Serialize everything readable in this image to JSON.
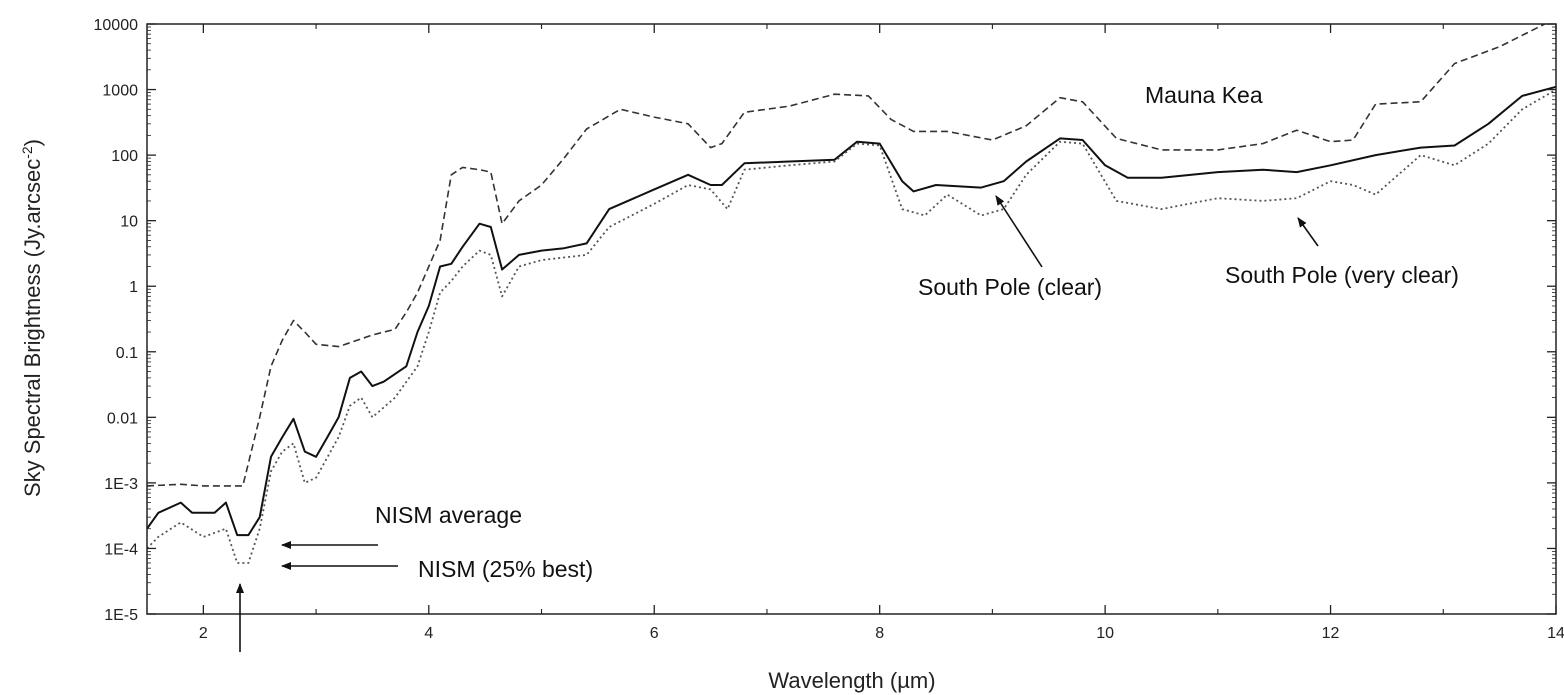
{
  "chart_data": {
    "type": "line",
    "xlabel": "Wavelength (µm)",
    "ylabel_main": "Sky Spectral Brightness (Jy.arcsec",
    "ylabel_sup": "-2",
    "ylabel_close": ")",
    "xlim": [
      1.5,
      14
    ],
    "ylim": [
      1e-05,
      10000
    ],
    "y_scale": "log",
    "grid": false,
    "x_ticks": [
      2,
      4,
      6,
      8,
      10,
      12,
      14
    ],
    "x_tick_labels": [
      "2",
      "4",
      "6",
      "8",
      "10",
      "12",
      "14"
    ],
    "y_ticks": [
      1e-05,
      0.0001,
      0.001,
      0.01,
      0.1,
      1,
      10,
      100,
      1000,
      10000
    ],
    "y_tick_labels": [
      "1E-5",
      "1E-4",
      "1E-3",
      "0.01",
      "0.1",
      "1",
      "10",
      "100",
      "1000",
      "10000"
    ],
    "series": [
      {
        "name": "Mauna Kea",
        "style": "dashed",
        "color": "#333333",
        "points": [
          [
            1.5,
            0.0009
          ],
          [
            1.8,
            0.00095
          ],
          [
            2.0,
            0.0009
          ],
          [
            2.2,
            0.0009
          ],
          [
            2.35,
            0.0009
          ],
          [
            2.4,
            0.002
          ],
          [
            2.5,
            0.01
          ],
          [
            2.6,
            0.06
          ],
          [
            2.7,
            0.15
          ],
          [
            2.8,
            0.3
          ],
          [
            2.9,
            0.2
          ],
          [
            3.0,
            0.13
          ],
          [
            3.2,
            0.12
          ],
          [
            3.5,
            0.18
          ],
          [
            3.7,
            0.22
          ],
          [
            3.8,
            0.4
          ],
          [
            3.9,
            0.8
          ],
          [
            4.0,
            2
          ],
          [
            4.1,
            5
          ],
          [
            4.2,
            50
          ],
          [
            4.3,
            65
          ],
          [
            4.45,
            60
          ],
          [
            4.55,
            55
          ],
          [
            4.65,
            9
          ],
          [
            4.8,
            20
          ],
          [
            5.0,
            35
          ],
          [
            5.2,
            90
          ],
          [
            5.4,
            250
          ],
          [
            5.7,
            500
          ],
          [
            6.0,
            380
          ],
          [
            6.3,
            300
          ],
          [
            6.5,
            130
          ],
          [
            6.6,
            150
          ],
          [
            6.8,
            450
          ],
          [
            7.2,
            560
          ],
          [
            7.6,
            850
          ],
          [
            7.9,
            800
          ],
          [
            8.1,
            350
          ],
          [
            8.3,
            230
          ],
          [
            8.6,
            230
          ],
          [
            9.0,
            170
          ],
          [
            9.3,
            280
          ],
          [
            9.6,
            750
          ],
          [
            9.8,
            650
          ],
          [
            10.1,
            180
          ],
          [
            10.5,
            120
          ],
          [
            11.0,
            120
          ],
          [
            11.4,
            150
          ],
          [
            11.7,
            240
          ],
          [
            12.0,
            160
          ],
          [
            12.2,
            170
          ],
          [
            12.4,
            600
          ],
          [
            12.8,
            650
          ],
          [
            13.1,
            2500
          ],
          [
            13.5,
            4500
          ],
          [
            13.9,
            10000
          ]
        ]
      },
      {
        "name": "South Pole (clear)",
        "style": "solid",
        "color": "#111111",
        "points": [
          [
            1.5,
            0.0002
          ],
          [
            1.6,
            0.00035
          ],
          [
            1.8,
            0.0005
          ],
          [
            1.9,
            0.00035
          ],
          [
            2.1,
            0.00035
          ],
          [
            2.2,
            0.0005
          ],
          [
            2.3,
            0.00016
          ],
          [
            2.4,
            0.00016
          ],
          [
            2.5,
            0.0003
          ],
          [
            2.6,
            0.0025
          ],
          [
            2.7,
            0.005
          ],
          [
            2.8,
            0.0095
          ],
          [
            2.9,
            0.003
          ],
          [
            3.0,
            0.0025
          ],
          [
            3.1,
            0.005
          ],
          [
            3.2,
            0.01
          ],
          [
            3.3,
            0.04
          ],
          [
            3.4,
            0.05
          ],
          [
            3.5,
            0.03
          ],
          [
            3.6,
            0.035
          ],
          [
            3.8,
            0.06
          ],
          [
            3.9,
            0.2
          ],
          [
            4.0,
            0.5
          ],
          [
            4.1,
            2
          ],
          [
            4.2,
            2.2
          ],
          [
            4.3,
            4
          ],
          [
            4.45,
            9
          ],
          [
            4.55,
            8
          ],
          [
            4.65,
            1.8
          ],
          [
            4.8,
            3
          ],
          [
            5.0,
            3.5
          ],
          [
            5.2,
            3.8
          ],
          [
            5.4,
            4.5
          ],
          [
            5.6,
            15
          ],
          [
            6.0,
            30
          ],
          [
            6.3,
            50
          ],
          [
            6.5,
            35
          ],
          [
            6.6,
            35
          ],
          [
            6.8,
            75
          ],
          [
            7.2,
            80
          ],
          [
            7.6,
            85
          ],
          [
            7.8,
            160
          ],
          [
            8.0,
            150
          ],
          [
            8.2,
            40
          ],
          [
            8.3,
            28
          ],
          [
            8.5,
            35
          ],
          [
            8.9,
            32
          ],
          [
            9.1,
            40
          ],
          [
            9.3,
            80
          ],
          [
            9.6,
            180
          ],
          [
            9.8,
            170
          ],
          [
            10.0,
            70
          ],
          [
            10.2,
            45
          ],
          [
            10.5,
            45
          ],
          [
            11.0,
            55
          ],
          [
            11.4,
            60
          ],
          [
            11.7,
            55
          ],
          [
            12.0,
            70
          ],
          [
            12.4,
            100
          ],
          [
            12.8,
            130
          ],
          [
            13.1,
            140
          ],
          [
            13.4,
            300
          ],
          [
            13.7,
            800
          ],
          [
            14.0,
            1100
          ]
        ]
      },
      {
        "name": "South Pole (very clear)",
        "style": "dotted",
        "color": "#555555",
        "points": [
          [
            1.5,
            0.0001
          ],
          [
            1.6,
            0.00015
          ],
          [
            1.8,
            0.00025
          ],
          [
            2.0,
            0.00015
          ],
          [
            2.2,
            0.0002
          ],
          [
            2.3,
            6e-05
          ],
          [
            2.4,
            6e-05
          ],
          [
            2.5,
            0.0002
          ],
          [
            2.6,
            0.0015
          ],
          [
            2.7,
            0.003
          ],
          [
            2.8,
            0.004
          ],
          [
            2.9,
            0.001
          ],
          [
            3.0,
            0.0012
          ],
          [
            3.2,
            0.005
          ],
          [
            3.3,
            0.015
          ],
          [
            3.4,
            0.02
          ],
          [
            3.5,
            0.01
          ],
          [
            3.7,
            0.02
          ],
          [
            3.9,
            0.06
          ],
          [
            4.0,
            0.2
          ],
          [
            4.1,
            0.8
          ],
          [
            4.2,
            1.2
          ],
          [
            4.3,
            2
          ],
          [
            4.45,
            3.5
          ],
          [
            4.55,
            3
          ],
          [
            4.65,
            0.7
          ],
          [
            4.8,
            2
          ],
          [
            5.0,
            2.5
          ],
          [
            5.4,
            3
          ],
          [
            5.6,
            8
          ],
          [
            6.0,
            18
          ],
          [
            6.3,
            35
          ],
          [
            6.5,
            30
          ],
          [
            6.65,
            15
          ],
          [
            6.8,
            60
          ],
          [
            7.2,
            70
          ],
          [
            7.6,
            80
          ],
          [
            7.8,
            150
          ],
          [
            8.0,
            140
          ],
          [
            8.2,
            15
          ],
          [
            8.4,
            12
          ],
          [
            8.6,
            25
          ],
          [
            8.9,
            12
          ],
          [
            9.1,
            15
          ],
          [
            9.3,
            50
          ],
          [
            9.6,
            160
          ],
          [
            9.8,
            150
          ],
          [
            10.1,
            20
          ],
          [
            10.5,
            15
          ],
          [
            11.0,
            22
          ],
          [
            11.4,
            20
          ],
          [
            11.7,
            22
          ],
          [
            12.0,
            40
          ],
          [
            12.2,
            35
          ],
          [
            12.4,
            25
          ],
          [
            12.8,
            100
          ],
          [
            13.1,
            70
          ],
          [
            13.4,
            150
          ],
          [
            13.7,
            500
          ],
          [
            14.0,
            1000
          ]
        ]
      }
    ],
    "annotations": {
      "mauna_kea": "Mauna Kea",
      "south_pole_clear": "South Pole (clear)",
      "south_pole_very_clear": "South Pole (very clear)",
      "nism_average": "NISM average",
      "nism_best": "NISM (25% best)"
    }
  }
}
